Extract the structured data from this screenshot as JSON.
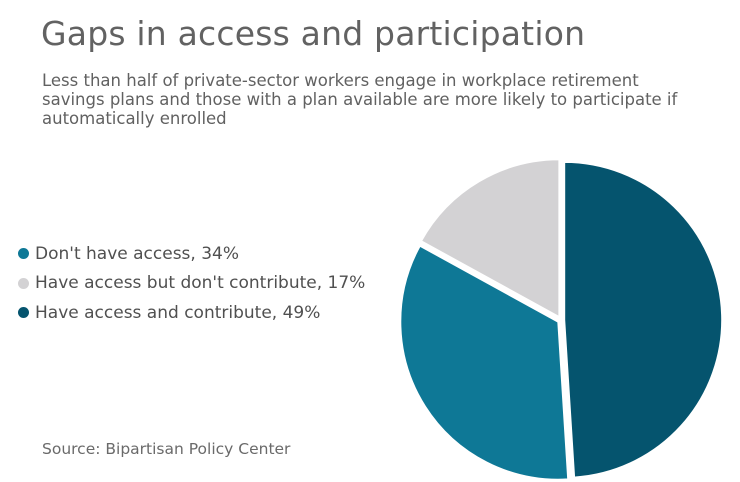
{
  "chart_data": {
    "type": "pie",
    "title": "Gaps in access and participation",
    "subtitle": "Less than half of private-sector workers engage in workplace retirement savings plans and those with a plan available are more likely to participate if automatically enrolled",
    "slices": [
      {
        "label": "Don't have access, 34%",
        "value": 34,
        "color": "#0e7896"
      },
      {
        "label": "Have access but don't contribute, 17%",
        "value": 17,
        "color": "#d3d2d4"
      },
      {
        "label": "Have access and contribute, 49%",
        "value": 49,
        "color": "#05546e"
      }
    ],
    "legend_position": "left",
    "source": "Source: Bipartisan Policy Center"
  }
}
